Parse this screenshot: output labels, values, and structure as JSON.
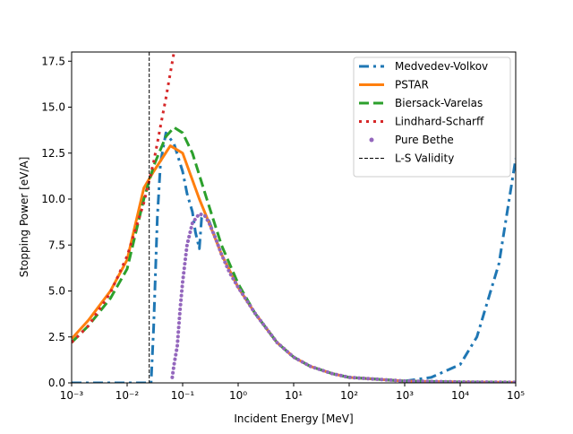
{
  "chart_data": {
    "type": "line",
    "xscale": "log",
    "xlabel": "Incident Energy [MeV]",
    "ylabel": "Stopping Power [eV/A]",
    "xlim": [
      0.001,
      100000
    ],
    "ylim": [
      0,
      18
    ],
    "xticks": [
      {
        "value": 0.001,
        "label": "10⁻³"
      },
      {
        "value": 0.01,
        "label": "10⁻²"
      },
      {
        "value": 0.1,
        "label": "10⁻¹"
      },
      {
        "value": 1,
        "label": "10⁰"
      },
      {
        "value": 10,
        "label": "10¹"
      },
      {
        "value": 100,
        "label": "10²"
      },
      {
        "value": 1000,
        "label": "10³"
      },
      {
        "value": 10000,
        "label": "10⁴"
      },
      {
        "value": 100000,
        "label": "10⁵"
      }
    ],
    "yticks": [
      {
        "value": 0,
        "label": "0.0"
      },
      2.5,
      {
        "value": 5,
        "label": "5.0"
      },
      7.5,
      {
        "value": 10,
        "label": "10.0"
      },
      12.5,
      {
        "value": 15,
        "label": "15.0"
      },
      17.5
    ],
    "legend": "upper right",
    "series": [
      {
        "name": "Medvedev-Volkov",
        "color": "#1f77b4",
        "style": "dashdot",
        "x": [
          0.001,
          0.01,
          0.027,
          0.03,
          0.035,
          0.04,
          0.05,
          0.07,
          0.1,
          0.12,
          0.15,
          0.17,
          0.2,
          0.22,
          0.25,
          0.3,
          0.5,
          1,
          2,
          5,
          10,
          20,
          50,
          100,
          1000,
          3000,
          10000,
          20000,
          50000,
          100000
        ],
        "values": [
          0,
          0,
          0,
          3,
          9,
          12,
          13.6,
          13,
          11.5,
          10.3,
          9.3,
          8.2,
          7.3,
          9.0,
          9.2,
          8.8,
          7.0,
          5.2,
          3.8,
          2.2,
          1.4,
          0.9,
          0.5,
          0.3,
          0.1,
          0.3,
          1.0,
          2.5,
          6.5,
          12.2
        ]
      },
      {
        "name": "PSTAR",
        "color": "#ff7f0e",
        "style": "solid",
        "x": [
          0.001,
          0.002,
          0.005,
          0.01,
          0.02,
          0.03,
          0.06,
          0.1,
          0.2,
          0.3,
          0.5,
          1,
          2,
          5,
          10,
          20,
          50,
          100,
          1000,
          10000,
          100000
        ],
        "values": [
          2.4,
          3.4,
          5.0,
          6.7,
          10.6,
          11.5,
          12.9,
          12.5,
          10,
          8.7,
          7.0,
          5.2,
          3.8,
          2.2,
          1.4,
          0.9,
          0.5,
          0.3,
          0.1,
          0.05,
          0.03
        ]
      },
      {
        "name": "Biersack-Varelas",
        "color": "#2ca02c",
        "style": "dashed",
        "x": [
          0.001,
          0.002,
          0.005,
          0.01,
          0.02,
          0.03,
          0.05,
          0.07,
          0.1,
          0.15,
          0.2,
          0.3,
          0.5,
          1,
          2,
          5,
          10,
          20,
          50,
          100,
          1000,
          10000,
          100000
        ],
        "values": [
          2.2,
          3.1,
          4.6,
          6.2,
          10.0,
          11.8,
          13.4,
          13.9,
          13.6,
          12.5,
          11.3,
          9.6,
          7.5,
          5.4,
          3.8,
          2.2,
          1.4,
          0.9,
          0.5,
          0.3,
          0.1,
          0.05,
          0.03
        ]
      },
      {
        "name": "Lindhard-Scharff",
        "color": "#d62728",
        "style": "dotted",
        "x": [
          0.001,
          0.002,
          0.005,
          0.01,
          0.02,
          0.03,
          0.05,
          0.07
        ],
        "values": [
          2.2,
          3.1,
          4.9,
          6.9,
          9.8,
          12,
          15.5,
          18
        ]
      },
      {
        "name": "Pure Bethe",
        "color": "#9467bd",
        "style": "dots",
        "x": [
          0.065,
          0.07,
          0.08,
          0.09,
          0.1,
          0.12,
          0.15,
          0.2,
          0.25,
          0.3,
          0.4,
          0.5,
          0.7,
          1,
          2,
          5,
          10,
          20,
          50,
          100,
          1000,
          10000,
          100000
        ],
        "values": [
          0.3,
          1.0,
          2.0,
          4.0,
          5.5,
          7.5,
          8.7,
          9.2,
          9.1,
          8.7,
          7.8,
          7.0,
          6.0,
          5.2,
          3.8,
          2.2,
          1.4,
          0.9,
          0.5,
          0.3,
          0.1,
          0.05,
          0.03
        ]
      },
      {
        "name": "L-S Validity",
        "color": "#000000",
        "style": "vline",
        "x": [
          0.025
        ]
      }
    ]
  }
}
